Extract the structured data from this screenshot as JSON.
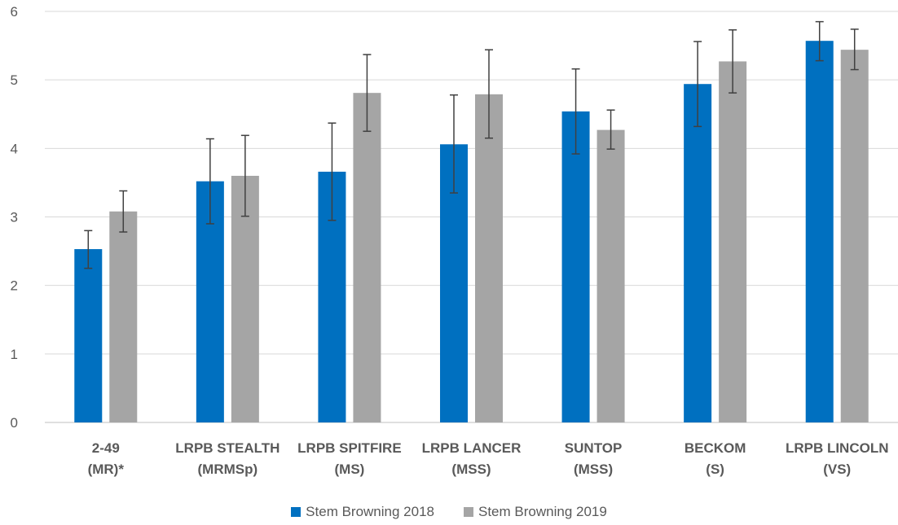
{
  "chart_data": {
    "type": "bar",
    "categories": [
      [
        "2-49",
        "(MR)*"
      ],
      [
        "LRPB STEALTH",
        "(MRMSp)"
      ],
      [
        "LRPB SPITFIRE",
        "(MS)"
      ],
      [
        "LRPB LANCER",
        "(MSS)"
      ],
      [
        "SUNTOP",
        "(MSS)"
      ],
      [
        "BECKOM",
        "(S)"
      ],
      [
        "LRPB LINCOLN",
        "(VS)"
      ]
    ],
    "series": [
      {
        "name": "Stem Browning 2018",
        "color": "#0070C0",
        "values": [
          2.53,
          3.52,
          3.66,
          4.06,
          4.54,
          4.94,
          5.57
        ],
        "error": [
          [
            2.25,
            2.8
          ],
          [
            2.9,
            4.14
          ],
          [
            2.95,
            4.37
          ],
          [
            3.35,
            4.78
          ],
          [
            3.92,
            5.16
          ],
          [
            4.32,
            5.56
          ],
          [
            5.28,
            5.85
          ]
        ]
      },
      {
        "name": "Stem Browning 2019",
        "color": "#A5A5A5",
        "values": [
          3.08,
          3.6,
          4.81,
          4.79,
          4.27,
          5.27,
          5.44
        ],
        "error": [
          [
            2.78,
            3.38
          ],
          [
            3.01,
            4.19
          ],
          [
            4.25,
            5.37
          ],
          [
            4.15,
            5.44
          ],
          [
            3.99,
            4.56
          ],
          [
            4.81,
            5.73
          ],
          [
            5.15,
            5.74
          ]
        ]
      }
    ],
    "yticks": [
      0,
      1,
      2,
      3,
      4,
      5,
      6
    ],
    "ylim": [
      0,
      6
    ],
    "grid": true,
    "legend_position": "bottom",
    "title": "",
    "xlabel": "",
    "ylabel": ""
  }
}
